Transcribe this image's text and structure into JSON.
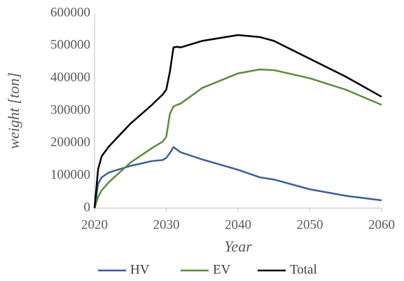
{
  "chart_data": {
    "type": "line",
    "x_label": "Year",
    "y_label": "weight [ton]",
    "x": [
      2020,
      2020.5,
      2021,
      2022,
      2025,
      2028,
      2029.5,
      2030,
      2030.5,
      2031,
      2031.5,
      2032,
      2035,
      2040,
      2043,
      2045,
      2050,
      2055,
      2060
    ],
    "series": [
      {
        "name": "HV",
        "color": "#3a5fa0",
        "values": [
          0,
          75000,
          95000,
          110000,
          130000,
          145000,
          148000,
          155000,
          170000,
          188000,
          180000,
          172000,
          150000,
          118000,
          95000,
          88000,
          58000,
          38000,
          24000
        ]
      },
      {
        "name": "EV",
        "color": "#5b8c3a",
        "values": [
          0,
          35000,
          55000,
          80000,
          140000,
          185000,
          205000,
          220000,
          290000,
          313000,
          318000,
          322000,
          370000,
          415000,
          427000,
          425000,
          400000,
          365000,
          318000
        ]
      },
      {
        "name": "Total",
        "color": "#000000",
        "values": [
          0,
          120000,
          160000,
          190000,
          260000,
          318000,
          350000,
          365000,
          420000,
          495000,
          497000,
          495000,
          515000,
          533000,
          527000,
          515000,
          460000,
          405000,
          343000
        ]
      }
    ],
    "xlim": [
      2020,
      2060
    ],
    "xticks": [
      2020,
      2030,
      2040,
      2050,
      2060
    ],
    "ylim": [
      0,
      600000
    ],
    "yticks": [
      0,
      100000,
      200000,
      300000,
      400000,
      500000,
      600000
    ],
    "grid": false,
    "legend": "bottom"
  }
}
